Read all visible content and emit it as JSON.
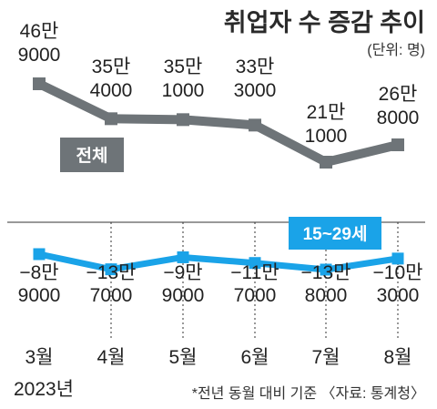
{
  "title": "취업자 수 증감 추이",
  "unit": "(단위: 명)",
  "footnote": "*전년 동월 대비 기준 〈자료: 통계청〉",
  "colors": {
    "total": "#6e7478",
    "youth": "#1aa3e8",
    "grid": "#333333"
  },
  "chart_data": {
    "type": "line",
    "categories": [
      "3월",
      "4월",
      "5월",
      "6월",
      "7월",
      "8월"
    ],
    "year_label": "2023년",
    "series": [
      {
        "name": "전체",
        "values": [
          469000,
          354000,
          351000,
          333000,
          211000,
          268000
        ],
        "labels": [
          [
            "46만",
            "9000"
          ],
          [
            "35만",
            "4000"
          ],
          [
            "35만",
            "1000"
          ],
          [
            "33만",
            "3000"
          ],
          [
            "21만",
            "1000"
          ],
          [
            "26만",
            "8000"
          ]
        ],
        "ylim": [
          150000,
          500000
        ]
      },
      {
        "name": "15~29세",
        "values": [
          -89000,
          -137000,
          -99000,
          -117000,
          -138000,
          -103000
        ],
        "labels": [
          [
            "−8만",
            "9000"
          ],
          [
            "−13만",
            "7000"
          ],
          [
            "−9만",
            "9000"
          ],
          [
            "−11만",
            "7000"
          ],
          [
            "−13만",
            "8000"
          ],
          [
            "−10만",
            "3000"
          ]
        ],
        "ylim": [
          -200000,
          0
        ]
      }
    ]
  }
}
